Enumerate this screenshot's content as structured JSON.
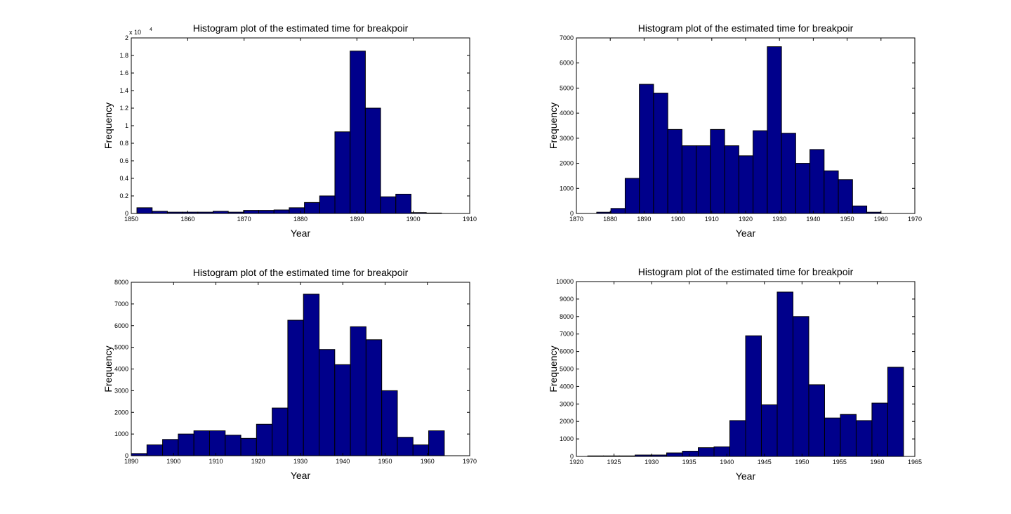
{
  "colors": {
    "bar_fill": "#00008b",
    "bar_stroke": "#000000",
    "axes": "#000000",
    "background": "#ffffff"
  },
  "chart_data": [
    {
      "type": "bar",
      "title": "Histogram plot of the estimated time for breakpoir",
      "xlabel": "Year",
      "ylabel": "Frequency",
      "exponent_label": "x 10",
      "exponent_power": "4",
      "xlim": [
        1850,
        1910
      ],
      "ylim": [
        0,
        20000
      ],
      "xticks": [
        1850,
        1860,
        1870,
        1880,
        1890,
        1900,
        1910
      ],
      "xtick_labels": [
        "1850",
        "1860",
        "1870",
        "1880",
        "1890",
        "1900",
        "1910"
      ],
      "yticks": [
        0,
        2000,
        4000,
        6000,
        8000,
        10000,
        12000,
        14000,
        16000,
        18000,
        20000
      ],
      "ytick_labels": [
        "0",
        "0.2",
        "0.4",
        "0.6",
        "0.8",
        "1",
        "1.2",
        "1.4",
        "1.6",
        "1.8",
        "2"
      ],
      "bin_edges": [
        1851.0,
        1853.7,
        1856.4,
        1859.1,
        1861.8,
        1864.5,
        1867.2,
        1869.9,
        1872.6,
        1875.3,
        1878.0,
        1880.7,
        1883.4,
        1886.1,
        1888.8,
        1891.5,
        1894.2,
        1896.9,
        1899.6,
        1902.3,
        1905.0
      ],
      "values": [
        650,
        250,
        150,
        150,
        150,
        250,
        150,
        350,
        350,
        400,
        650,
        1250,
        2000,
        9300,
        18500,
        12000,
        1900,
        2200,
        100,
        50
      ]
    },
    {
      "type": "bar",
      "title": "Histogram plot of the estimated time for breakpoir",
      "xlabel": "Year",
      "ylabel": "Frequency",
      "xlim": [
        1870,
        1970
      ],
      "ylim": [
        0,
        7000
      ],
      "xticks": [
        1870,
        1880,
        1890,
        1900,
        1910,
        1920,
        1930,
        1940,
        1950,
        1960,
        1970
      ],
      "xtick_labels": [
        "1870",
        "1880",
        "1890",
        "1900",
        "1910",
        "1920",
        "1930",
        "1940",
        "1950",
        "1960",
        "1970"
      ],
      "yticks": [
        0,
        1000,
        2000,
        3000,
        4000,
        5000,
        6000,
        7000
      ],
      "ytick_labels": [
        "0",
        "1000",
        "2000",
        "3000",
        "4000",
        "5000",
        "6000",
        "7000"
      ],
      "bin_edges": [
        1876.0,
        1880.2,
        1884.4,
        1888.6,
        1892.8,
        1897.0,
        1901.2,
        1905.4,
        1909.6,
        1913.8,
        1918.0,
        1922.2,
        1926.4,
        1930.6,
        1934.8,
        1939.0,
        1943.2,
        1947.4,
        1951.6,
        1955.8,
        1960.0
      ],
      "values": [
        50,
        200,
        1400,
        5150,
        4800,
        3350,
        2700,
        2700,
        3350,
        2700,
        2300,
        3300,
        6650,
        3200,
        2000,
        2550,
        1700,
        1350,
        300,
        50
      ]
    },
    {
      "type": "bar",
      "title": "Histogram plot of the estimated time for breakpoir",
      "xlabel": "Year",
      "ylabel": "Frequency",
      "xlim": [
        1890,
        1970
      ],
      "ylim": [
        0,
        8000
      ],
      "xticks": [
        1890,
        1900,
        1910,
        1920,
        1930,
        1940,
        1950,
        1960,
        1970
      ],
      "xtick_labels": [
        "1890",
        "1900",
        "1910",
        "1920",
        "1930",
        "1940",
        "1950",
        "1960",
        "1970"
      ],
      "yticks": [
        0,
        1000,
        2000,
        3000,
        4000,
        5000,
        6000,
        7000,
        8000
      ],
      "ytick_labels": [
        "0",
        "1000",
        "2000",
        "3000",
        "4000",
        "5000",
        "6000",
        "7000",
        "8000"
      ],
      "bin_edges": [
        1890.0,
        1893.7,
        1897.4,
        1901.1,
        1904.8,
        1908.5,
        1912.2,
        1915.9,
        1919.6,
        1923.3,
        1927.0,
        1930.7,
        1934.4,
        1938.1,
        1941.8,
        1945.5,
        1949.2,
        1952.9,
        1956.6,
        1960.3,
        1964.0
      ],
      "values": [
        100,
        500,
        750,
        1000,
        1150,
        1150,
        950,
        800,
        1450,
        2200,
        6250,
        7450,
        4900,
        4200,
        5950,
        5350,
        3000,
        850,
        500,
        1150
      ]
    },
    {
      "type": "bar",
      "title": "Histogram plot of the estimated time for breakpoir",
      "xlabel": "Year",
      "ylabel": "Frequency",
      "xlim": [
        1920,
        1965
      ],
      "ylim": [
        0,
        10000
      ],
      "xticks": [
        1920,
        1925,
        1930,
        1935,
        1940,
        1945,
        1950,
        1955,
        1960,
        1965
      ],
      "xtick_labels": [
        "1920",
        "1925",
        "1930",
        "1935",
        "1940",
        "1945",
        "1950",
        "1955",
        "1960",
        "1965"
      ],
      "yticks": [
        0,
        1000,
        2000,
        3000,
        4000,
        5000,
        6000,
        7000,
        8000,
        9000,
        10000
      ],
      "ytick_labels": [
        "0",
        "1000",
        "2000",
        "3000",
        "4000",
        "5000",
        "6000",
        "7000",
        "8000",
        "9000",
        "10000"
      ],
      "bin_edges": [
        1921.5,
        1923.6,
        1925.7,
        1927.8,
        1929.9,
        1932.0,
        1934.1,
        1936.2,
        1938.3,
        1940.4,
        1942.5,
        1944.6,
        1946.7,
        1948.8,
        1950.9,
        1953.0,
        1955.1,
        1957.2,
        1959.3,
        1961.4,
        1963.5
      ],
      "values": [
        30,
        30,
        30,
        80,
        80,
        200,
        300,
        500,
        550,
        2050,
        6900,
        2950,
        9400,
        8000,
        4100,
        2200,
        2400,
        2050,
        3050,
        5100
      ]
    }
  ]
}
